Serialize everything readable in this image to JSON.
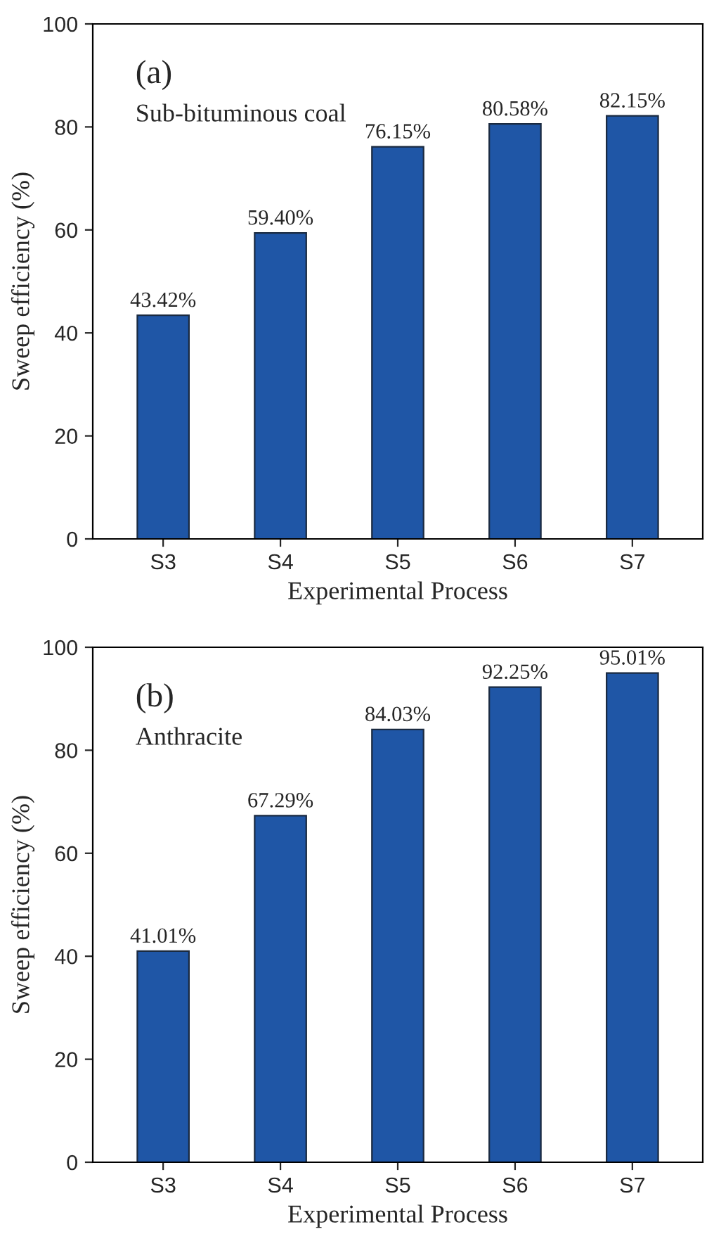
{
  "chart_data": [
    {
      "type": "bar",
      "xlabel": "Experimental Process",
      "ylabel": "Sweep efficiency (%)",
      "annotations": [
        "(a)",
        "Sub-bituminous coal"
      ],
      "categories": [
        "S3",
        "S4",
        "S5",
        "S6",
        "S7"
      ],
      "values": [
        43.42,
        59.4,
        76.15,
        80.58,
        82.15
      ],
      "value_labels": [
        "43.42%",
        "59.40%",
        "76.15%",
        "80.58%",
        "82.15%"
      ],
      "color": "#1f56a6",
      "ylim": [
        0,
        100
      ],
      "yticks": [
        0,
        20,
        40,
        60,
        80,
        100
      ],
      "grid": false,
      "legend": false
    },
    {
      "type": "bar",
      "xlabel": "Experimental Process",
      "ylabel": "Sweep efficiency (%)",
      "annotations": [
        "(b)",
        "Anthracite"
      ],
      "categories": [
        "S3",
        "S4",
        "S5",
        "S6",
        "S7"
      ],
      "values": [
        41.01,
        67.29,
        84.03,
        92.25,
        95.01
      ],
      "value_labels": [
        "41.01%",
        "67.29%",
        "84.03%",
        "92.25%",
        "95.01%"
      ],
      "color": "#1f56a6",
      "ylim": [
        0,
        100
      ],
      "yticks": [
        0,
        20,
        40,
        60,
        80,
        100
      ],
      "grid": false,
      "legend": false
    }
  ]
}
